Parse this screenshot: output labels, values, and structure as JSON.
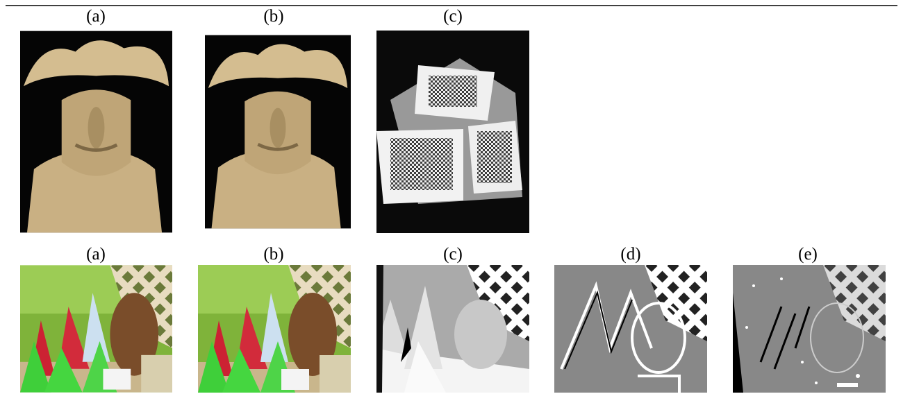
{
  "figure": {
    "rows": [
      {
        "labels": [
          "(a)",
          "(b)",
          "(c)"
        ]
      },
      {
        "labels": [
          "(a)",
          "(b)",
          "(c)",
          "(d)",
          "(e)"
        ]
      }
    ]
  }
}
